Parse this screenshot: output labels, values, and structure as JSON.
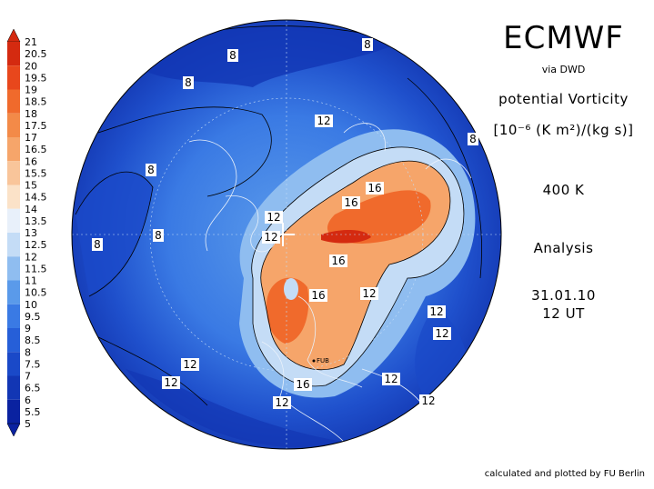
{
  "title": "ECMWF",
  "subtitle": "via DWD",
  "variable": "potential Vorticity",
  "units": "[10⁻⁶ (K m²)/(kg s)]",
  "level": "400 K",
  "type": "Analysis",
  "date": "31.01.10",
  "time": "12 UT",
  "footer": "calculated and plotted by FU Berlin",
  "scale": {
    "ticks": [
      "21",
      "20.5",
      "20",
      "19.5",
      "19",
      "18.5",
      "18",
      "17.5",
      "17",
      "16.5",
      "16",
      "15.5",
      "15",
      "14.5",
      "14",
      "13.5",
      "13",
      "12.5",
      "12",
      "11.5",
      "11",
      "10.5",
      "10",
      "9.5",
      "9",
      "8.5",
      "8",
      "7.5",
      "7",
      "6.5",
      "6",
      "5.5",
      "5"
    ],
    "colors_top_to_bottom": [
      "#d42a10",
      "#e8471c",
      "#f06a2c",
      "#f38a48",
      "#f6a56a",
      "#f9c59a",
      "#fbe2c8",
      "#e8f0fa",
      "#c4dcf6",
      "#8fbdf0",
      "#5a9aea",
      "#3a7ae4",
      "#265fd8",
      "#1a49c8",
      "#1236b4",
      "#0a22a0"
    ]
  },
  "contour_labels": [
    {
      "text": "8"
    },
    {
      "text": "8"
    },
    {
      "text": "8"
    },
    {
      "text": "8"
    },
    {
      "text": "8"
    },
    {
      "text": "8"
    },
    {
      "text": "8"
    },
    {
      "text": "12"
    },
    {
      "text": "12"
    },
    {
      "text": "12"
    },
    {
      "text": "16"
    },
    {
      "text": "16"
    },
    {
      "text": "16"
    },
    {
      "text": "16"
    },
    {
      "text": "12"
    },
    {
      "text": "12"
    },
    {
      "text": "12"
    },
    {
      "text": "12"
    },
    {
      "text": "12"
    },
    {
      "text": "16"
    },
    {
      "text": "12"
    },
    {
      "text": "12"
    },
    {
      "text": "12"
    }
  ],
  "station_label": "FUB"
}
